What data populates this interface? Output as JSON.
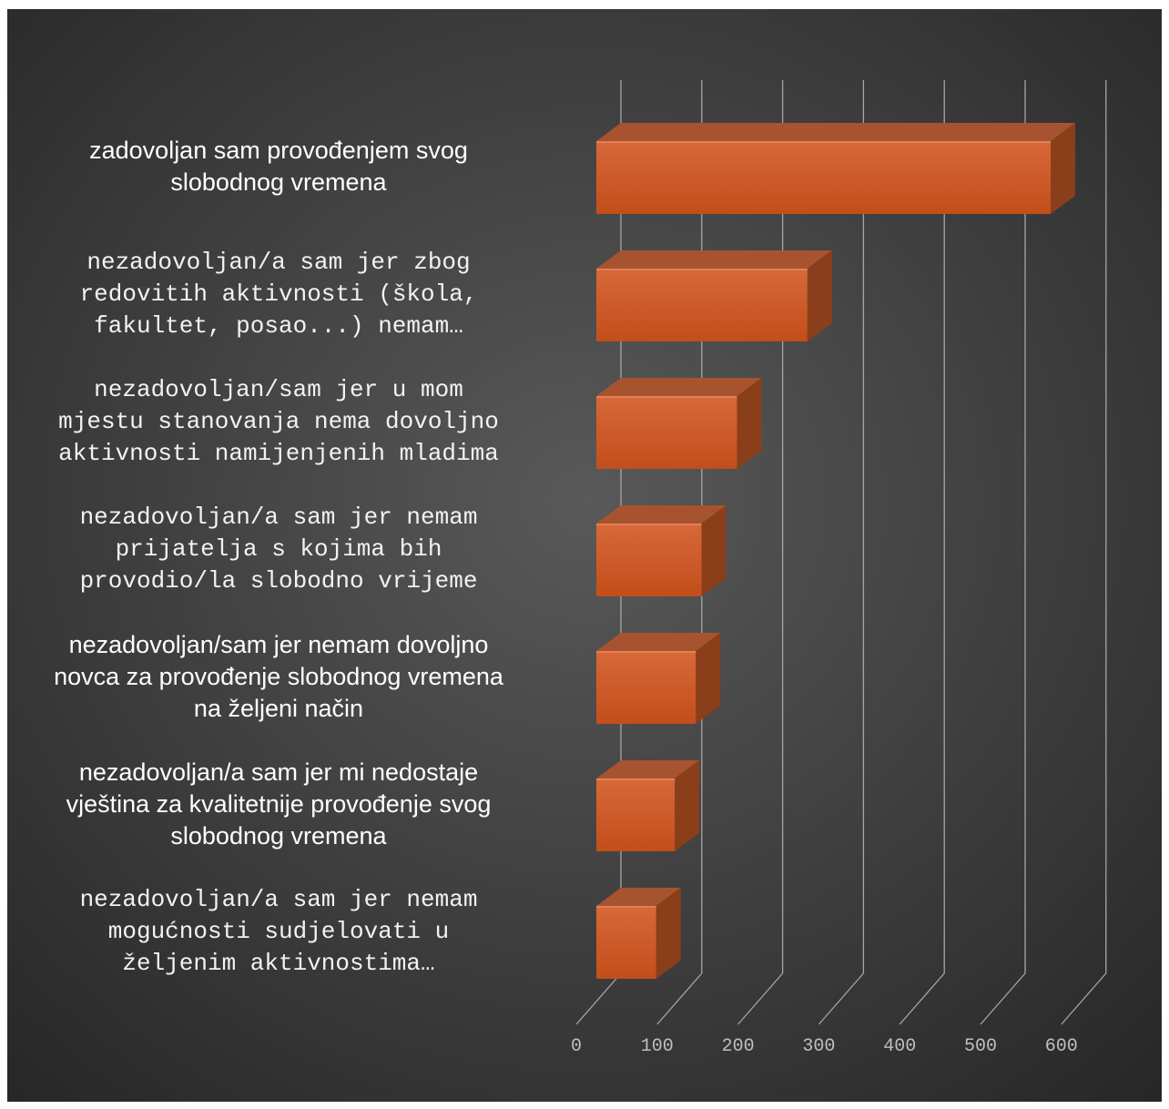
{
  "chart_data": {
    "type": "bar",
    "orientation": "horizontal",
    "style": "3d",
    "categories": [
      [
        "zadovoljan sam provođenjem svog",
        "slobodnog vremena"
      ],
      [
        "nezadovoljan/a sam jer zbog",
        "redovitih aktivnosti (škola,",
        "fakultet, posao...) nemam…"
      ],
      [
        "nezadovoljan/sam jer u mom",
        "mjestu stanovanja nema dovoljno",
        "aktivnosti namijenjenih mladima"
      ],
      [
        "nezadovoljan/a sam jer nemam",
        "prijatelja s kojima bih",
        "provodio/la slobodno vrijeme"
      ],
      [
        "nezadovoljan/sam jer nemam dovoljno",
        "novca za provođenje slobodnog vremena",
        "na željeni način"
      ],
      [
        "nezadovoljan/a sam jer mi nedostaje",
        "vještina za kvalitetnije provođenje svog",
        "slobodnog vremena"
      ],
      [
        "nezadovoljan/a sam jer nemam",
        "mogućnosti sudjelovati u",
        "željenim aktivnostima…"
      ]
    ],
    "label_fonts": [
      "sans",
      "mono",
      "mono",
      "mono",
      "sans",
      "sans",
      "mono"
    ],
    "values": [
      562,
      261,
      174,
      130,
      123,
      97,
      74
    ],
    "x_ticks": [
      "0",
      "100",
      "200",
      "300",
      "400",
      "500",
      "600"
    ],
    "xlim": [
      0,
      600
    ],
    "title": "",
    "xlabel": "",
    "ylabel": "",
    "grid": true,
    "legend": "none",
    "colors": {
      "bar_front_light": "#d8683a",
      "bar_front_dark": "#c24e1a",
      "bar_top": "#a85330",
      "bar_side": "#8a3e1a",
      "grid": "#a6a6a6",
      "tick_text": "#bfbfbf",
      "label_text": "#ffffff",
      "bg_center": "#595959",
      "bg_edge": "#262626"
    }
  }
}
